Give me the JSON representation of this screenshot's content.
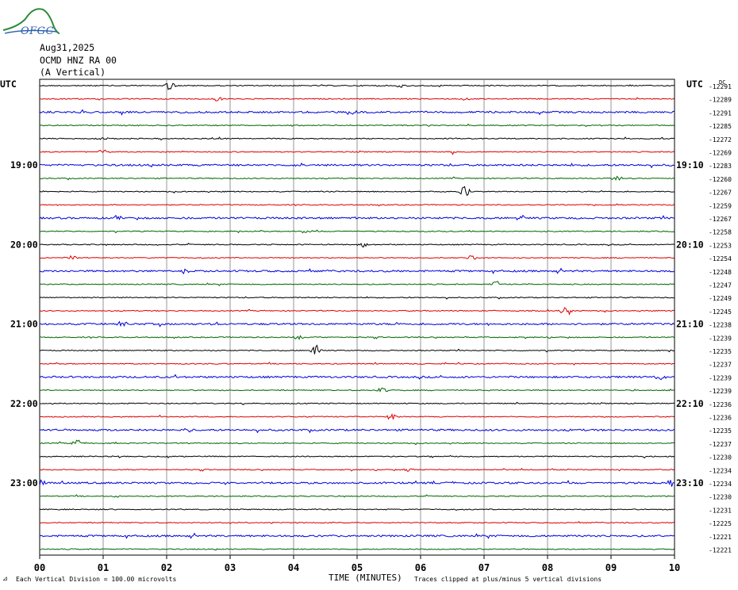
{
  "header": {
    "date": "Aug31,2025",
    "station": "OCMD HNZ RA 00",
    "component": "(A Vertical)"
  },
  "logo": {
    "text": "OFGC"
  },
  "footer": {
    "scale_note": "Each Vertical Division =  100.00 microvolts",
    "clip_note": "Traces clipped at plus/minus 5 vertical divisions",
    "corner_mark": "⊿"
  },
  "colors": {
    "trace_cycle": [
      "#000000",
      "#dd0000",
      "#0000dd",
      "#006600"
    ],
    "grid": "#000000"
  },
  "chart_data": {
    "type": "line",
    "title": "",
    "xlabel": "TIME (MINUTES)",
    "ylabel": "",
    "x_ticks": [
      "00",
      "01",
      "02",
      "03",
      "04",
      "05",
      "06",
      "07",
      "08",
      "09",
      "10"
    ],
    "xlim": [
      0,
      10
    ],
    "left_axis_label": "UTC",
    "right_axis_label": "UTC",
    "dc_label": "DC",
    "left_time_labels": [
      {
        "row": 6,
        "text": "19:00"
      },
      {
        "row": 12,
        "text": "20:00"
      },
      {
        "row": 18,
        "text": "21:00"
      },
      {
        "row": 24,
        "text": "22:00"
      },
      {
        "row": 30,
        "text": "23:00"
      }
    ],
    "right_time_labels": [
      {
        "row": 6,
        "text": "19:10"
      },
      {
        "row": 12,
        "text": "20:10"
      },
      {
        "row": 18,
        "text": "21:10"
      },
      {
        "row": 24,
        "text": "22:10"
      },
      {
        "row": 30,
        "text": "23:10"
      }
    ],
    "dc_offsets": [
      "-12291",
      "-12289",
      "-12291",
      "-12285",
      "-12272",
      "-12269",
      "-12283",
      "-12260",
      "-12267",
      "-12259",
      "-12267",
      "-12258",
      "-12253",
      "-12254",
      "-12248",
      "-12247",
      "-12249",
      "-12245",
      "-12238",
      "-12239",
      "-12235",
      "-12237",
      "-12239",
      "-12239",
      "-12236",
      "-12236",
      "-12235",
      "-12237",
      "-12230",
      "-12234",
      "-12234",
      "-12230",
      "-12231",
      "-12225",
      "-12221",
      "-12221"
    ],
    "events": [
      {
        "row": 0,
        "x": 2.05,
        "amp": 6
      },
      {
        "row": 0,
        "x": 5.7,
        "amp": 3
      },
      {
        "row": 1,
        "x": 2.8,
        "amp": 4
      },
      {
        "row": 1,
        "x": 6.7,
        "amp": 3
      },
      {
        "row": 2,
        "x": 4.9,
        "amp": 3
      },
      {
        "row": 4,
        "x": 1.0,
        "amp": 3
      },
      {
        "row": 5,
        "x": 1.0,
        "amp": 3
      },
      {
        "row": 5,
        "x": 6.5,
        "amp": 3
      },
      {
        "row": 6,
        "x": 4.1,
        "amp": 2
      },
      {
        "row": 7,
        "x": 9.1,
        "amp": 3
      },
      {
        "row": 8,
        "x": 6.7,
        "amp": 8
      },
      {
        "row": 10,
        "x": 1.2,
        "amp": 3
      },
      {
        "row": 10,
        "x": 7.6,
        "amp": 4
      },
      {
        "row": 11,
        "x": 4.2,
        "amp": 3
      },
      {
        "row": 12,
        "x": 5.1,
        "amp": 3
      },
      {
        "row": 13,
        "x": 0.5,
        "amp": 3
      },
      {
        "row": 13,
        "x": 6.8,
        "amp": 3
      },
      {
        "row": 14,
        "x": 2.3,
        "amp": 3
      },
      {
        "row": 15,
        "x": 7.2,
        "amp": 4
      },
      {
        "row": 17,
        "x": 8.3,
        "amp": 9
      },
      {
        "row": 18,
        "x": 1.3,
        "amp": 4
      },
      {
        "row": 19,
        "x": 4.1,
        "amp": 4
      },
      {
        "row": 20,
        "x": 4.35,
        "amp": 8
      },
      {
        "row": 22,
        "x": 9.8,
        "amp": 3
      },
      {
        "row": 23,
        "x": 5.4,
        "amp": 4
      },
      {
        "row": 25,
        "x": 5.55,
        "amp": 5
      },
      {
        "row": 26,
        "x": 2.3,
        "amp": 4
      },
      {
        "row": 27,
        "x": 0.6,
        "amp": 5
      },
      {
        "row": 29,
        "x": 5.8,
        "amp": 3
      },
      {
        "row": 30,
        "x": 0.05,
        "amp": 5
      },
      {
        "row": 30,
        "x": 9.95,
        "amp": 5
      },
      {
        "row": 30,
        "x": 2.9,
        "amp": 3
      },
      {
        "row": 31,
        "x": 1.2,
        "amp": 3
      }
    ]
  }
}
